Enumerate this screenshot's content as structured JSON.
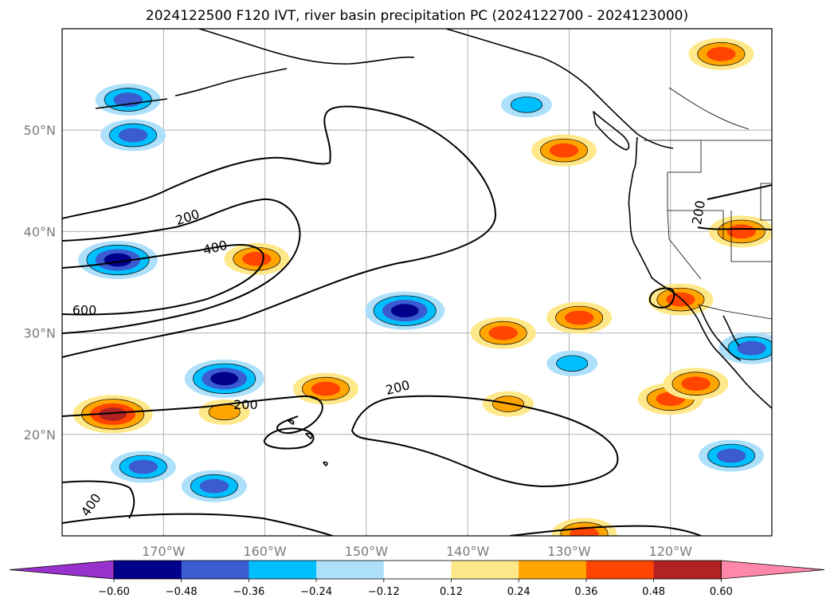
{
  "chart_data": {
    "type": "contour_map",
    "title": "2024122500 F120 IVT, river basin precipitation PC (2024122700 - 2024123000)",
    "map": {
      "lon_range": [
        -180,
        -110
      ],
      "lat_range": [
        10,
        60
      ],
      "lon_ticks": [
        -170,
        -160,
        -150,
        -140,
        -130,
        -120
      ],
      "lon_tick_labels": [
        "170°W",
        "160°W",
        "150°W",
        "140°W",
        "130°W",
        "120°W"
      ],
      "lat_ticks": [
        20,
        30,
        40,
        50
      ],
      "lat_tick_labels": [
        "20°N",
        "30°N",
        "40°N",
        "50°N"
      ],
      "grid": true
    },
    "ivt_contours": {
      "levels": [
        200,
        400,
        600
      ],
      "labels": [
        {
          "text": "200",
          "lon": -167.5,
          "lat": 41.0,
          "angle": -18
        },
        {
          "text": "400",
          "lon": -164.8,
          "lat": 38.0,
          "angle": -14
        },
        {
          "text": "600",
          "lon": -177.8,
          "lat": 31.8,
          "angle": 0
        },
        {
          "text": "200",
          "lon": -161.9,
          "lat": 22.5,
          "angle": 0
        },
        {
          "text": "200",
          "lon": -146.8,
          "lat": 24.2,
          "angle": -14
        },
        {
          "text": "400",
          "lon": -176.8,
          "lat": 12.8,
          "angle": -55
        },
        {
          "text": "200",
          "lon": -116.8,
          "lat": 41.8,
          "angle": -80
        }
      ]
    },
    "precip_pc": {
      "levels": [
        -0.6,
        -0.48,
        -0.36,
        -0.24,
        -0.12,
        0.12,
        0.24,
        0.36,
        0.48,
        0.6
      ],
      "level_labels": [
        "−0.60",
        "−0.48",
        "−0.36",
        "−0.24",
        "−0.12",
        "0.12",
        "0.24",
        "0.36",
        "0.48",
        "0.60"
      ],
      "colors": [
        "#9932CC",
        "#00008B",
        "#3B5BD0",
        "#00BFFF",
        "#ADE0FA",
        "#FFFFFF",
        "#FFE88A",
        "#FFA500",
        "#FF4500",
        "#B22222",
        "#FF88AA"
      ],
      "extend": "both",
      "negative_regions": [
        {
          "lon": -174.5,
          "lat": 37.2,
          "peak": -0.48
        },
        {
          "lon": -173.0,
          "lat": 49.5,
          "peak": -0.36
        },
        {
          "lon": -164.0,
          "lat": 25.5,
          "peak": -0.48
        },
        {
          "lon": -146.2,
          "lat": 32.2,
          "peak": -0.48
        },
        {
          "lon": -172.0,
          "lat": 16.8,
          "peak": -0.36
        },
        {
          "lon": -165.0,
          "lat": 14.9,
          "peak": -0.36
        },
        {
          "lon": -173.5,
          "lat": 53.0,
          "peak": -0.36
        },
        {
          "lon": -134.2,
          "lat": 52.5,
          "peak": -0.24
        },
        {
          "lon": -112.0,
          "lat": 28.5,
          "peak": -0.36
        },
        {
          "lon": -114.0,
          "lat": 17.9,
          "peak": -0.36
        },
        {
          "lon": -129.7,
          "lat": 27.0,
          "peak": -0.24
        }
      ],
      "positive_regions": [
        {
          "lon": -175.0,
          "lat": 22.0,
          "peak": 0.48
        },
        {
          "lon": -160.8,
          "lat": 37.3,
          "peak": 0.36
        },
        {
          "lon": -164.0,
          "lat": 22.2,
          "peak": 0.24
        },
        {
          "lon": -154.0,
          "lat": 24.5,
          "peak": 0.36
        },
        {
          "lon": -136.5,
          "lat": 30.0,
          "peak": 0.36
        },
        {
          "lon": -129.0,
          "lat": 31.5,
          "peak": 0.36
        },
        {
          "lon": -130.5,
          "lat": 48.0,
          "peak": 0.36
        },
        {
          "lon": -120.0,
          "lat": 23.5,
          "peak": 0.36
        },
        {
          "lon": -119.0,
          "lat": 33.3,
          "peak": 0.36
        },
        {
          "lon": -115.0,
          "lat": 57.5,
          "peak": 0.36
        },
        {
          "lon": -113.0,
          "lat": 40.0,
          "peak": 0.36
        },
        {
          "lon": -128.5,
          "lat": 10.2,
          "peak": 0.36
        },
        {
          "lon": -136.0,
          "lat": 23.0,
          "peak": 0.24
        },
        {
          "lon": -117.5,
          "lat": 25.0,
          "peak": 0.36
        }
      ]
    }
  },
  "icons": {
    "colorbar": "colorbar-legend",
    "coastline": "coastline-shape"
  }
}
